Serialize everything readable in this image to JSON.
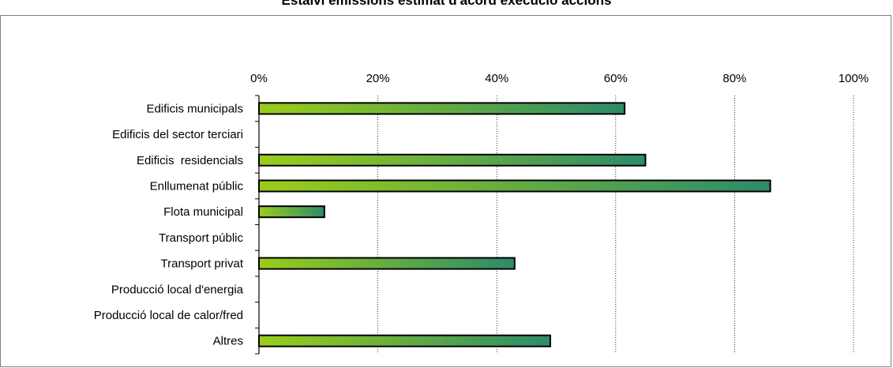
{
  "chart_data": {
    "type": "bar",
    "orientation": "horizontal",
    "title": "Estalvi emissions estimat d'acord execució accions",
    "categories": [
      "Edificis municipals",
      "Edificis del sector terciari",
      "Edificis  residencials",
      "Enllumenat públic",
      "Flota municipal",
      "Transport públic",
      "Transport privat",
      "Producció local d'energia",
      "Producció local de calor/fred",
      "Altres"
    ],
    "values": [
      0.615,
      0,
      0.65,
      0.86,
      0.11,
      0,
      0.43,
      0,
      0,
      0.49
    ],
    "xlim": [
      0,
      1
    ],
    "xticks": [
      "0%",
      "20%",
      "40%",
      "60%",
      "80%",
      "100%"
    ],
    "grid": "vertical-dotted",
    "bar_gradient": [
      "#9acd1a",
      "#2e8b6a"
    ]
  }
}
